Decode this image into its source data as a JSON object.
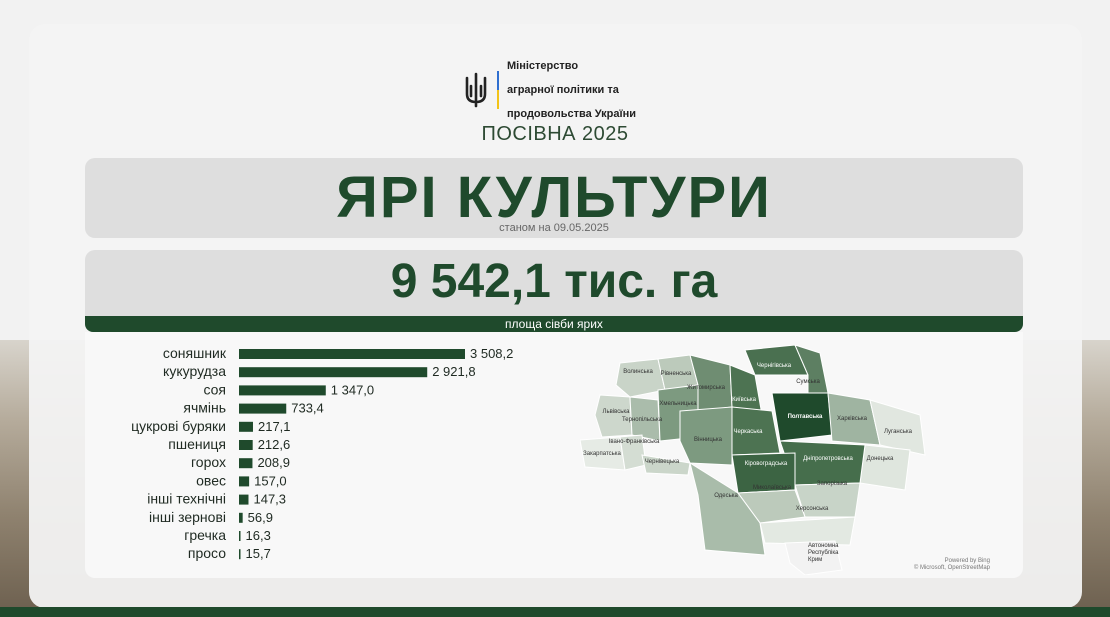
{
  "header": {
    "org_line1": "Міністерство",
    "org_line2": "аграрної політики та",
    "org_line3": "продовольства України",
    "sowing": "ПОСІВНА 2025",
    "title": "ЯРІ КУЛЬТУРИ",
    "date": "станом на 09.05.2025"
  },
  "summary": {
    "total": "9 542,1 тис. га",
    "caption": "площа сівби ярих"
  },
  "chart_data": {
    "type": "bar",
    "orientation": "horizontal",
    "categories": [
      "соняшник",
      "кукурудза",
      "соя",
      "ячмінь",
      "цукрові буряки",
      "пшениця",
      "горох",
      "овес",
      "інші технічні",
      "інші зернові",
      "гречка",
      "просо"
    ],
    "values": [
      3508.2,
      2921.8,
      1347.0,
      733.4,
      217.1,
      212.6,
      208.9,
      157.0,
      147.3,
      56.9,
      16.3,
      15.7
    ],
    "value_labels": [
      "3 508,2",
      "2 921,8",
      "1 347,0",
      "733,4",
      "217,1",
      "212,6",
      "208,9",
      "157,0",
      "147,3",
      "56,9",
      "16,3",
      "15,7"
    ],
    "color": "#1f4a2c"
  },
  "map": {
    "regions": [
      {
        "name": "Волинська",
        "shade": "#c9d4c8"
      },
      {
        "name": "Рівненська",
        "shade": "#bccabb"
      },
      {
        "name": "Житомирська",
        "shade": "#6f8d72"
      },
      {
        "name": "Київська",
        "shade": "#4d7352"
      },
      {
        "name": "Чернігівська",
        "shade": "#4a7050"
      },
      {
        "name": "Сумська",
        "shade": "#5d7f62"
      },
      {
        "name": "Львівська",
        "shade": "#cdd7cc"
      },
      {
        "name": "Хмельницька",
        "shade": "#7d9a80"
      },
      {
        "name": "Тернопільська",
        "shade": "#aabcab"
      },
      {
        "name": "Вінницька",
        "shade": "#7d9a80"
      },
      {
        "name": "Черкаська",
        "shade": "#4d7352"
      },
      {
        "name": "Полтавська",
        "shade": "#1f4a2c"
      },
      {
        "name": "Харківська",
        "shade": "#9fb4a1"
      },
      {
        "name": "Луганська",
        "shade": "#e1e7e0"
      },
      {
        "name": "Донецька",
        "shade": "#dfe6de"
      },
      {
        "name": "Дніпропетровська",
        "shade": "#466e4c"
      },
      {
        "name": "Кіровоградська",
        "shade": "#3c6443"
      },
      {
        "name": "Запорізька",
        "shade": "#c8d4c8"
      },
      {
        "name": "Миколаївська",
        "shade": "#bccabb"
      },
      {
        "name": "Херсонська",
        "shade": "#e3e9e2"
      },
      {
        "name": "Одеська",
        "shade": "#a9bcaa"
      },
      {
        "name": "Закарпатська",
        "shade": "#e6ebe5"
      },
      {
        "name": "Чернівецька",
        "shade": "#cbd6ca"
      },
      {
        "name": "Івано-Франківська",
        "shade": "#d4ddd3"
      },
      {
        "name": "Автономна Республіка Крим",
        "shade": "#f2f2f2"
      }
    ],
    "crimea_l1": "Автономна",
    "crimea_l2": "Республіка",
    "crimea_l3": "Крим",
    "credit1": "Powered by Bing",
    "credit2": "© Microsoft, OpenStreetMap"
  }
}
